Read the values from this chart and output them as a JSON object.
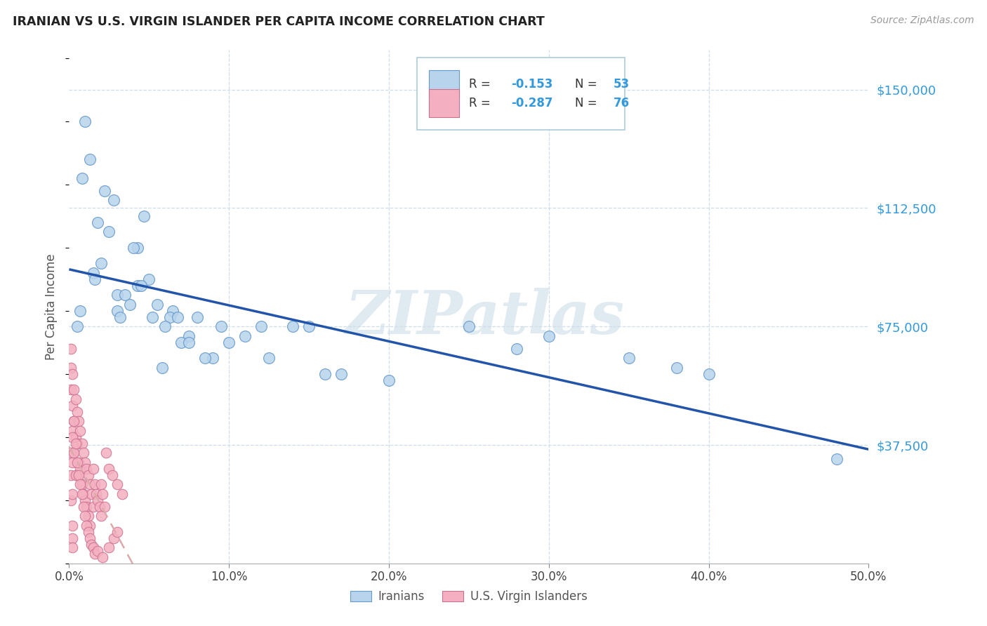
{
  "title": "IRANIAN VS U.S. VIRGIN ISLANDER PER CAPITA INCOME CORRELATION CHART",
  "source": "Source: ZipAtlas.com",
  "watermark": "ZIPatlas",
  "ylabel": "Per Capita Income",
  "xlim": [
    0.0,
    0.5
  ],
  "ylim": [
    0,
    162500
  ],
  "yticks": [
    0,
    37500,
    75000,
    112500,
    150000
  ],
  "ytick_labels": [
    "",
    "$37,500",
    "$75,000",
    "$112,500",
    "$150,000"
  ],
  "xticks": [
    0.0,
    0.1,
    0.2,
    0.3,
    0.4,
    0.5
  ],
  "xtick_labels": [
    "0.0%",
    "10.0%",
    "20.0%",
    "30.0%",
    "40.0%",
    "50.0%"
  ],
  "legend_r1": "-0.153",
  "legend_n1": "53",
  "legend_r2": "-0.287",
  "legend_n2": "76",
  "label1": "Iranians",
  "label2": "U.S. Virgin Islanders",
  "color_iranian_fill": "#b8d4ec",
  "color_iranian_edge": "#6699cc",
  "color_vi_fill": "#f4b0c0",
  "color_vi_edge": "#cc7090",
  "color_line_iranian": "#2255aa",
  "color_line_vi": "#ddaaaa",
  "color_ytick": "#3399dd",
  "color_title": "#222222",
  "color_source": "#999999",
  "color_watermark": "#ccdde8",
  "color_grid": "#ccddee",
  "background_color": "#ffffff",
  "iranians_x": [
    0.03,
    0.01,
    0.043,
    0.047,
    0.022,
    0.013,
    0.008,
    0.02,
    0.025,
    0.028,
    0.018,
    0.03,
    0.065,
    0.063,
    0.05,
    0.04,
    0.043,
    0.015,
    0.06,
    0.08,
    0.075,
    0.09,
    0.095,
    0.1,
    0.11,
    0.125,
    0.14,
    0.16,
    0.2,
    0.25,
    0.3,
    0.38,
    0.48,
    0.035,
    0.052,
    0.055,
    0.07,
    0.085,
    0.005,
    0.007,
    0.016,
    0.032,
    0.038,
    0.045,
    0.058,
    0.068,
    0.075,
    0.12,
    0.15,
    0.17,
    0.4,
    0.35,
    0.28
  ],
  "iranians_y": [
    80000,
    140000,
    100000,
    110000,
    118000,
    128000,
    122000,
    95000,
    105000,
    115000,
    108000,
    85000,
    80000,
    78000,
    90000,
    100000,
    88000,
    92000,
    75000,
    78000,
    72000,
    65000,
    75000,
    70000,
    72000,
    65000,
    75000,
    60000,
    58000,
    75000,
    72000,
    62000,
    33000,
    85000,
    78000,
    82000,
    70000,
    65000,
    75000,
    80000,
    90000,
    78000,
    82000,
    88000,
    62000,
    78000,
    70000,
    75000,
    75000,
    60000,
    60000,
    65000,
    68000
  ],
  "vi_x": [
    0.001,
    0.001,
    0.001,
    0.002,
    0.002,
    0.002,
    0.003,
    0.003,
    0.003,
    0.004,
    0.004,
    0.005,
    0.005,
    0.005,
    0.006,
    0.006,
    0.007,
    0.007,
    0.008,
    0.008,
    0.009,
    0.009,
    0.01,
    0.01,
    0.011,
    0.011,
    0.012,
    0.012,
    0.013,
    0.013,
    0.014,
    0.015,
    0.015,
    0.016,
    0.017,
    0.018,
    0.019,
    0.02,
    0.02,
    0.021,
    0.022,
    0.023,
    0.025,
    0.027,
    0.03,
    0.033,
    0.001,
    0.001,
    0.001,
    0.002,
    0.002,
    0.002,
    0.003,
    0.003,
    0.004,
    0.004,
    0.005,
    0.006,
    0.007,
    0.008,
    0.009,
    0.01,
    0.011,
    0.012,
    0.013,
    0.014,
    0.015,
    0.016,
    0.018,
    0.021,
    0.025,
    0.028,
    0.03,
    0.002,
    0.002,
    0.002
  ],
  "vi_y": [
    68000,
    62000,
    55000,
    60000,
    50000,
    42000,
    55000,
    45000,
    35000,
    52000,
    40000,
    48000,
    38000,
    28000,
    45000,
    32000,
    42000,
    30000,
    38000,
    25000,
    35000,
    22000,
    32000,
    20000,
    30000,
    18000,
    28000,
    15000,
    25000,
    12000,
    22000,
    30000,
    18000,
    25000,
    22000,
    20000,
    18000,
    25000,
    15000,
    22000,
    18000,
    35000,
    30000,
    28000,
    25000,
    22000,
    35000,
    28000,
    20000,
    40000,
    32000,
    22000,
    45000,
    35000,
    38000,
    28000,
    32000,
    28000,
    25000,
    22000,
    18000,
    15000,
    12000,
    10000,
    8000,
    6000,
    5000,
    3000,
    4000,
    2000,
    5000,
    8000,
    10000,
    8000,
    12000,
    5000
  ]
}
